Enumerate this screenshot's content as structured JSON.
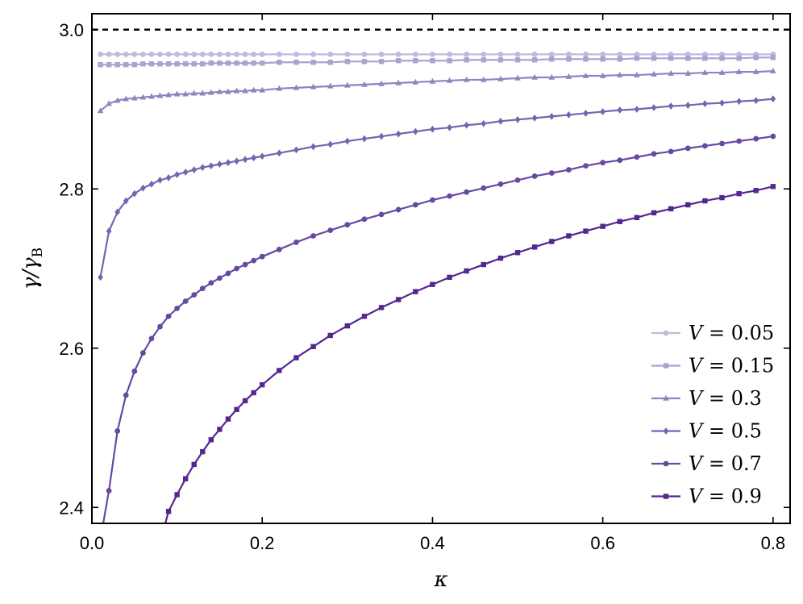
{
  "chart_data": {
    "type": "line",
    "xlabel": "κ",
    "ylabel": "γ/γ",
    "ylabel_sub": "B",
    "xlim": [
      0.0,
      0.82
    ],
    "ylim": [
      2.38,
      3.02
    ],
    "xticks": [
      0.0,
      0.2,
      0.4,
      0.6,
      0.8
    ],
    "xtick_labels": [
      "0.0",
      "0.2",
      "0.4",
      "0.6",
      "0.8"
    ],
    "yticks": [
      2.4,
      2.6,
      2.8,
      3.0
    ],
    "ytick_labels": [
      "2.4",
      "2.6",
      "2.8",
      "3.0"
    ],
    "reference_line": {
      "y": 3.0,
      "style": "dashed",
      "color": "#000000"
    },
    "legend_position": "lower-right",
    "grid": false,
    "x": [
      0.01,
      0.02,
      0.03,
      0.04,
      0.05,
      0.06,
      0.07,
      0.08,
      0.09,
      0.1,
      0.11,
      0.12,
      0.13,
      0.14,
      0.15,
      0.16,
      0.17,
      0.18,
      0.19,
      0.2,
      0.22,
      0.24,
      0.26,
      0.28,
      0.3,
      0.32,
      0.34,
      0.36,
      0.38,
      0.4,
      0.42,
      0.44,
      0.46,
      0.48,
      0.5,
      0.52,
      0.54,
      0.56,
      0.58,
      0.6,
      0.62,
      0.64,
      0.66,
      0.68,
      0.7,
      0.72,
      0.74,
      0.76,
      0.78,
      0.8
    ],
    "series": [
      {
        "name": "V = 0.05",
        "legend_var": "V",
        "legend_eq": "= 0.05",
        "color": "#bdbbdc",
        "marker": "circle",
        "values": [
          2.969,
          2.969,
          2.969,
          2.969,
          2.969,
          2.969,
          2.969,
          2.969,
          2.969,
          2.969,
          2.969,
          2.969,
          2.969,
          2.969,
          2.969,
          2.969,
          2.969,
          2.969,
          2.969,
          2.969,
          2.969,
          2.969,
          2.969,
          2.969,
          2.969,
          2.969,
          2.969,
          2.969,
          2.969,
          2.969,
          2.969,
          2.969,
          2.969,
          2.969,
          2.969,
          2.969,
          2.969,
          2.969,
          2.969,
          2.969,
          2.969,
          2.969,
          2.969,
          2.969,
          2.969,
          2.969,
          2.969,
          2.969,
          2.969,
          2.969
        ]
      },
      {
        "name": "V = 0.15",
        "legend_var": "V",
        "legend_eq": "= 0.15",
        "color": "#a7a4cf",
        "marker": "square",
        "values": [
          2.956,
          2.956,
          2.956,
          2.956,
          2.956,
          2.957,
          2.957,
          2.957,
          2.957,
          2.957,
          2.957,
          2.957,
          2.957,
          2.958,
          2.958,
          2.958,
          2.958,
          2.958,
          2.958,
          2.958,
          2.959,
          2.959,
          2.959,
          2.959,
          2.96,
          2.96,
          2.96,
          2.961,
          2.961,
          2.961,
          2.961,
          2.962,
          2.962,
          2.962,
          2.962,
          2.962,
          2.963,
          2.963,
          2.963,
          2.963,
          2.963,
          2.964,
          2.964,
          2.964,
          2.964,
          2.964,
          2.964,
          2.964,
          2.965,
          2.965
        ]
      },
      {
        "name": "V = 0.3",
        "legend_var": "V",
        "legend_eq": "= 0.3",
        "color": "#8c86c0",
        "marker": "triangle",
        "values": [
          2.898,
          2.907,
          2.911,
          2.913,
          2.914,
          2.915,
          2.916,
          2.917,
          2.918,
          2.919,
          2.919,
          2.92,
          2.92,
          2.921,
          2.922,
          2.922,
          2.923,
          2.923,
          2.924,
          2.924,
          2.926,
          2.927,
          2.928,
          2.929,
          2.93,
          2.931,
          2.932,
          2.933,
          2.934,
          2.935,
          2.936,
          2.937,
          2.937,
          2.938,
          2.939,
          2.94,
          2.94,
          2.941,
          2.942,
          2.942,
          2.943,
          2.943,
          2.944,
          2.945,
          2.945,
          2.946,
          2.946,
          2.947,
          2.947,
          2.948
        ]
      },
      {
        "name": "V = 0.5",
        "legend_var": "V",
        "legend_eq": "= 0.5",
        "color": "#7565b0",
        "marker": "diamond",
        "values": [
          2.689,
          2.747,
          2.771,
          2.785,
          2.794,
          2.801,
          2.806,
          2.811,
          2.814,
          2.818,
          2.821,
          2.824,
          2.827,
          2.829,
          2.831,
          2.833,
          2.835,
          2.837,
          2.839,
          2.841,
          2.845,
          2.849,
          2.853,
          2.856,
          2.86,
          2.863,
          2.866,
          2.869,
          2.872,
          2.875,
          2.877,
          2.88,
          2.882,
          2.885,
          2.887,
          2.889,
          2.891,
          2.893,
          2.895,
          2.897,
          2.899,
          2.9,
          2.902,
          2.904,
          2.905,
          2.907,
          2.908,
          2.91,
          2.911,
          2.913
        ]
      },
      {
        "name": "V = 0.7",
        "legend_var": "V",
        "legend_eq": "= 0.7",
        "color": "#664a9f",
        "marker": "circle",
        "values": [
          2.36,
          2.421,
          2.496,
          2.541,
          2.571,
          2.594,
          2.612,
          2.627,
          2.64,
          2.65,
          2.659,
          2.667,
          2.675,
          2.682,
          2.688,
          2.694,
          2.7,
          2.705,
          2.71,
          2.715,
          2.724,
          2.733,
          2.741,
          2.748,
          2.755,
          2.762,
          2.768,
          2.774,
          2.78,
          2.786,
          2.791,
          2.796,
          2.801,
          2.806,
          2.811,
          2.816,
          2.82,
          2.824,
          2.829,
          2.833,
          2.836,
          2.84,
          2.844,
          2.847,
          2.851,
          2.854,
          2.857,
          2.86,
          2.863,
          2.866
        ]
      },
      {
        "name": "V = 0.9",
        "legend_var": "V",
        "legend_eq": "= 0.9",
        "color": "#54278f",
        "marker": "square",
        "values": [
          null,
          null,
          null,
          null,
          null,
          null,
          null,
          2.355,
          2.395,
          2.416,
          2.436,
          2.454,
          2.47,
          2.485,
          2.498,
          2.511,
          2.523,
          2.534,
          2.544,
          2.554,
          2.572,
          2.588,
          2.602,
          2.616,
          2.628,
          2.64,
          2.651,
          2.661,
          2.671,
          2.68,
          2.689,
          2.697,
          2.705,
          2.713,
          2.72,
          2.727,
          2.734,
          2.741,
          2.747,
          2.753,
          2.759,
          2.764,
          2.77,
          2.775,
          2.78,
          2.785,
          2.789,
          2.794,
          2.798,
          2.803
        ]
      }
    ]
  }
}
